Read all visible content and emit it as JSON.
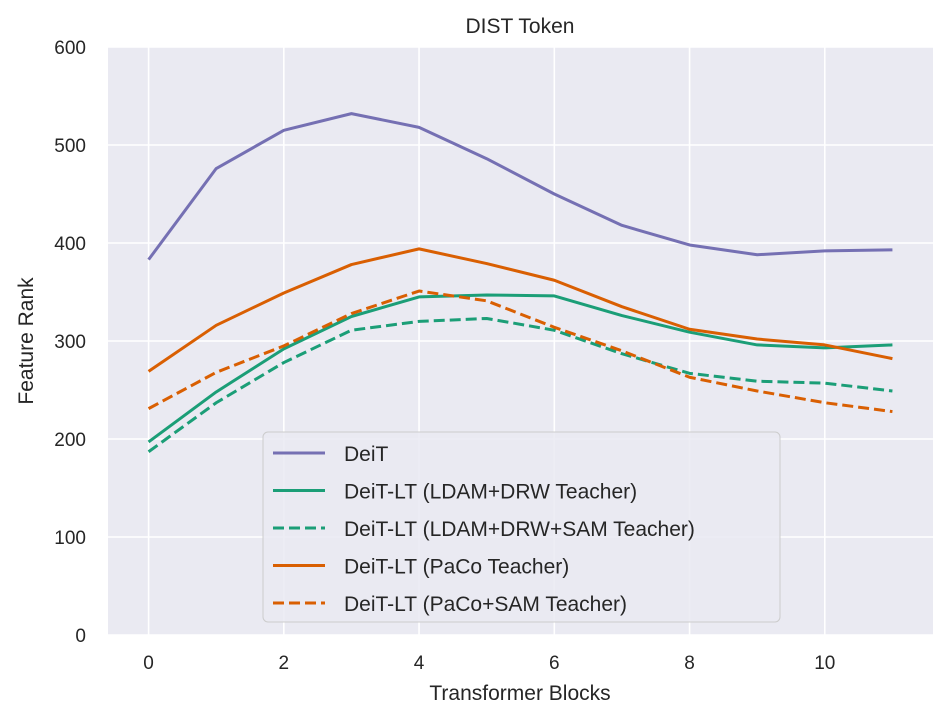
{
  "chart_data": {
    "type": "line",
    "title": "DIST Token",
    "xlabel": "Transformer Blocks",
    "ylabel": "Feature Rank",
    "x": [
      0,
      1,
      2,
      3,
      4,
      5,
      6,
      7,
      8,
      9,
      10,
      11
    ],
    "xlim": [
      -0.6,
      11.6
    ],
    "ylim": [
      0,
      600
    ],
    "xticks": [
      0,
      2,
      4,
      6,
      8,
      10
    ],
    "yticks": [
      0,
      100,
      200,
      300,
      400,
      500,
      600
    ],
    "grid": true,
    "background": "#eaeaf2",
    "legend_position": "lower center",
    "series": [
      {
        "name": "DeiT",
        "color": "#7570b3",
        "dash": "solid",
        "values": [
          383,
          476,
          515,
          532,
          518,
          486,
          450,
          418,
          398,
          388,
          392,
          393
        ]
      },
      {
        "name": "DeiT-LT (LDAM+DRW Teacher)",
        "color": "#1b9e77",
        "dash": "solid",
        "values": [
          197,
          248,
          292,
          325,
          345,
          347,
          346,
          326,
          309,
          296,
          293,
          296
        ]
      },
      {
        "name": "DeiT-LT (LDAM+DRW+SAM Teacher)",
        "color": "#1b9e77",
        "dash": "dashed",
        "values": [
          187,
          237,
          278,
          311,
          320,
          323,
          311,
          287,
          267,
          259,
          257,
          249
        ]
      },
      {
        "name": "DeiT-LT (PaCo Teacher)",
        "color": "#d95f02",
        "dash": "solid",
        "values": [
          269,
          316,
          349,
          378,
          394,
          379,
          362,
          335,
          312,
          302,
          296,
          282
        ]
      },
      {
        "name": "DeiT-LT (PaCo+SAM Teacher)",
        "color": "#d95f02",
        "dash": "dashed",
        "values": [
          231,
          268,
          295,
          328,
          351,
          341,
          314,
          290,
          263,
          249,
          237,
          228
        ]
      }
    ]
  }
}
